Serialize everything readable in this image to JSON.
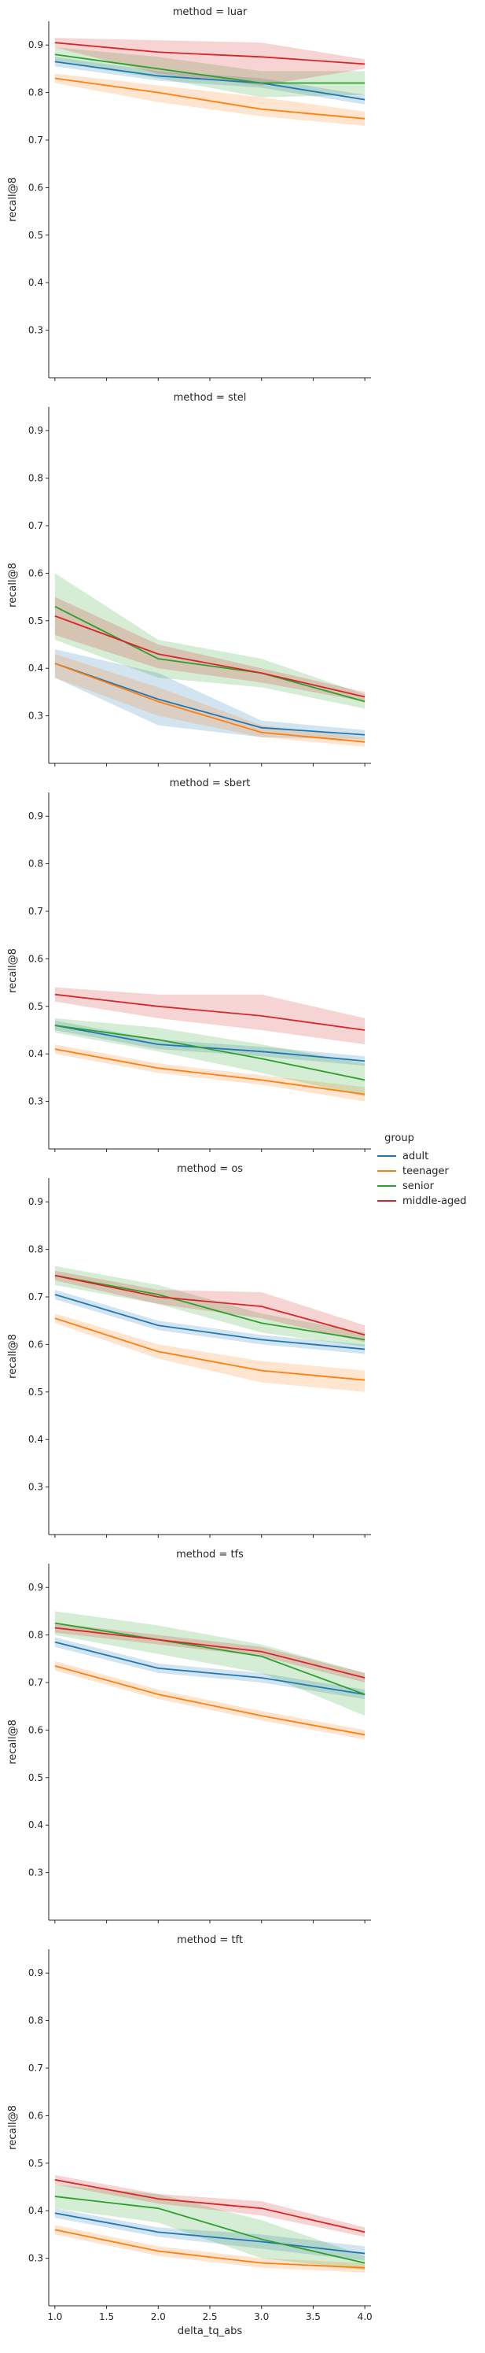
{
  "x_label": "delta_tq_abs",
  "y_label": "recall@8",
  "x_ticks": [
    "1.0",
    "1.5",
    "2.0",
    "2.5",
    "3.0",
    "3.5",
    "4.0"
  ],
  "y_ticks": [
    "0.3",
    "0.4",
    "0.5",
    "0.6",
    "0.7",
    "0.8",
    "0.9"
  ],
  "legend": {
    "title": "group",
    "items": [
      {
        "label": "adult",
        "color": "#1f77b4"
      },
      {
        "label": "teenager",
        "color": "#ff7f0e"
      },
      {
        "label": "senior",
        "color": "#2ca02c"
      },
      {
        "label": "middle-aged",
        "color": "#d62728"
      }
    ]
  },
  "chart_data": [
    {
      "type": "line",
      "title": "method = luar",
      "x": [
        1,
        2,
        3,
        4
      ],
      "xlim": [
        1,
        4
      ],
      "ylim": [
        0.2,
        0.95
      ],
      "xlabel": "",
      "ylabel": "recall@8",
      "series": [
        {
          "name": "adult",
          "color": "#1f77b4",
          "values": [
            0.865,
            0.835,
            0.82,
            0.785
          ],
          "lower": [
            0.855,
            0.825,
            0.81,
            0.775
          ],
          "upper": [
            0.875,
            0.845,
            0.83,
            0.795
          ]
        },
        {
          "name": "teenager",
          "color": "#ff7f0e",
          "values": [
            0.83,
            0.8,
            0.765,
            0.745
          ],
          "lower": [
            0.82,
            0.78,
            0.75,
            0.73
          ],
          "upper": [
            0.84,
            0.815,
            0.79,
            0.76
          ]
        },
        {
          "name": "senior",
          "color": "#2ca02c",
          "values": [
            0.88,
            0.85,
            0.82,
            0.82
          ],
          "lower": [
            0.865,
            0.83,
            0.79,
            0.795
          ],
          "upper": [
            0.895,
            0.875,
            0.845,
            0.845
          ]
        },
        {
          "name": "middle-aged",
          "color": "#d62728",
          "values": [
            0.905,
            0.885,
            0.875,
            0.86
          ],
          "lower": [
            0.895,
            0.84,
            0.815,
            0.85
          ],
          "upper": [
            0.915,
            0.91,
            0.905,
            0.87
          ]
        }
      ]
    },
    {
      "type": "line",
      "title": "method = stel",
      "x": [
        1,
        2,
        3,
        4
      ],
      "xlim": [
        1,
        4
      ],
      "ylim": [
        0.2,
        0.95
      ],
      "xlabel": "",
      "ylabel": "recall@8",
      "series": [
        {
          "name": "adult",
          "color": "#1f77b4",
          "values": [
            0.41,
            0.335,
            0.275,
            0.26
          ],
          "lower": [
            0.38,
            0.28,
            0.255,
            0.25
          ],
          "upper": [
            0.44,
            0.39,
            0.29,
            0.27
          ]
        },
        {
          "name": "teenager",
          "color": "#ff7f0e",
          "values": [
            0.41,
            0.33,
            0.265,
            0.245
          ],
          "lower": [
            0.38,
            0.3,
            0.255,
            0.235
          ],
          "upper": [
            0.43,
            0.36,
            0.28,
            0.255
          ]
        },
        {
          "name": "senior",
          "color": "#2ca02c",
          "values": [
            0.53,
            0.42,
            0.39,
            0.33
          ],
          "lower": [
            0.46,
            0.38,
            0.36,
            0.315
          ],
          "upper": [
            0.6,
            0.46,
            0.42,
            0.345
          ]
        },
        {
          "name": "middle-aged",
          "color": "#d62728",
          "values": [
            0.51,
            0.43,
            0.39,
            0.34
          ],
          "lower": [
            0.47,
            0.4,
            0.37,
            0.33
          ],
          "upper": [
            0.55,
            0.45,
            0.4,
            0.35
          ]
        }
      ]
    },
    {
      "type": "line",
      "title": "method = sbert",
      "x": [
        1,
        2,
        3,
        4
      ],
      "xlim": [
        1,
        4
      ],
      "ylim": [
        0.2,
        0.95
      ],
      "xlabel": "",
      "ylabel": "recall@8",
      "series": [
        {
          "name": "adult",
          "color": "#1f77b4",
          "values": [
            0.46,
            0.42,
            0.405,
            0.385
          ],
          "lower": [
            0.45,
            0.41,
            0.395,
            0.375
          ],
          "upper": [
            0.47,
            0.43,
            0.415,
            0.395
          ]
        },
        {
          "name": "teenager",
          "color": "#ff7f0e",
          "values": [
            0.41,
            0.37,
            0.345,
            0.315
          ],
          "lower": [
            0.4,
            0.36,
            0.335,
            0.3
          ],
          "upper": [
            0.42,
            0.38,
            0.355,
            0.33
          ]
        },
        {
          "name": "senior",
          "color": "#2ca02c",
          "values": [
            0.46,
            0.43,
            0.39,
            0.345
          ],
          "lower": [
            0.445,
            0.405,
            0.36,
            0.31
          ],
          "upper": [
            0.475,
            0.455,
            0.42,
            0.38
          ]
        },
        {
          "name": "middle-aged",
          "color": "#d62728",
          "values": [
            0.525,
            0.5,
            0.48,
            0.45
          ],
          "lower": [
            0.51,
            0.475,
            0.45,
            0.42
          ],
          "upper": [
            0.54,
            0.525,
            0.525,
            0.475
          ]
        }
      ]
    },
    {
      "type": "line",
      "title": "method = os",
      "x": [
        1,
        2,
        3,
        4
      ],
      "xlim": [
        1,
        4
      ],
      "ylim": [
        0.2,
        0.95
      ],
      "xlabel": "",
      "ylabel": "recall@8",
      "series": [
        {
          "name": "adult",
          "color": "#1f77b4",
          "values": [
            0.705,
            0.64,
            0.61,
            0.59
          ],
          "lower": [
            0.695,
            0.63,
            0.6,
            0.58
          ],
          "upper": [
            0.715,
            0.65,
            0.62,
            0.6
          ]
        },
        {
          "name": "teenager",
          "color": "#ff7f0e",
          "values": [
            0.655,
            0.585,
            0.545,
            0.525
          ],
          "lower": [
            0.645,
            0.57,
            0.52,
            0.5
          ],
          "upper": [
            0.665,
            0.6,
            0.565,
            0.545
          ]
        },
        {
          "name": "senior",
          "color": "#2ca02c",
          "values": [
            0.745,
            0.705,
            0.645,
            0.61
          ],
          "lower": [
            0.725,
            0.685,
            0.625,
            0.595
          ],
          "upper": [
            0.765,
            0.725,
            0.665,
            0.625
          ]
        },
        {
          "name": "middle-aged",
          "color": "#d62728",
          "values": [
            0.745,
            0.7,
            0.68,
            0.62
          ],
          "lower": [
            0.735,
            0.685,
            0.655,
            0.605
          ],
          "upper": [
            0.755,
            0.715,
            0.71,
            0.64
          ]
        }
      ]
    },
    {
      "type": "line",
      "title": "method = tfs",
      "x": [
        1,
        2,
        3,
        4
      ],
      "xlim": [
        1,
        4
      ],
      "ylim": [
        0.2,
        0.95
      ],
      "xlabel": "",
      "ylabel": "recall@8",
      "series": [
        {
          "name": "adult",
          "color": "#1f77b4",
          "values": [
            0.785,
            0.73,
            0.71,
            0.675
          ],
          "lower": [
            0.775,
            0.72,
            0.7,
            0.665
          ],
          "upper": [
            0.795,
            0.74,
            0.72,
            0.685
          ]
        },
        {
          "name": "teenager",
          "color": "#ff7f0e",
          "values": [
            0.735,
            0.675,
            0.63,
            0.59
          ],
          "lower": [
            0.725,
            0.665,
            0.62,
            0.58
          ],
          "upper": [
            0.745,
            0.685,
            0.64,
            0.6
          ]
        },
        {
          "name": "senior",
          "color": "#2ca02c",
          "values": [
            0.825,
            0.79,
            0.755,
            0.675
          ],
          "lower": [
            0.8,
            0.76,
            0.72,
            0.63
          ],
          "upper": [
            0.85,
            0.82,
            0.78,
            0.72
          ]
        },
        {
          "name": "middle-aged",
          "color": "#d62728",
          "values": [
            0.815,
            0.79,
            0.765,
            0.71
          ],
          "lower": [
            0.805,
            0.78,
            0.755,
            0.7
          ],
          "upper": [
            0.825,
            0.8,
            0.775,
            0.72
          ]
        }
      ]
    },
    {
      "type": "line",
      "title": "method = tft",
      "x": [
        1,
        2,
        3,
        4
      ],
      "xlim": [
        1,
        4
      ],
      "ylim": [
        0.2,
        0.95
      ],
      "xlabel": "delta_tq_abs",
      "ylabel": "recall@8",
      "series": [
        {
          "name": "adult",
          "color": "#1f77b4",
          "values": [
            0.395,
            0.355,
            0.335,
            0.31
          ],
          "lower": [
            0.385,
            0.345,
            0.32,
            0.295
          ],
          "upper": [
            0.405,
            0.365,
            0.35,
            0.325
          ]
        },
        {
          "name": "teenager",
          "color": "#ff7f0e",
          "values": [
            0.36,
            0.315,
            0.29,
            0.28
          ],
          "lower": [
            0.35,
            0.305,
            0.28,
            0.27
          ],
          "upper": [
            0.37,
            0.325,
            0.3,
            0.29
          ]
        },
        {
          "name": "senior",
          "color": "#2ca02c",
          "values": [
            0.43,
            0.405,
            0.34,
            0.29
          ],
          "lower": [
            0.405,
            0.375,
            0.3,
            0.275
          ],
          "upper": [
            0.455,
            0.435,
            0.38,
            0.305
          ]
        },
        {
          "name": "middle-aged",
          "color": "#d62728",
          "values": [
            0.465,
            0.425,
            0.405,
            0.355
          ],
          "lower": [
            0.455,
            0.415,
            0.39,
            0.345
          ],
          "upper": [
            0.475,
            0.435,
            0.42,
            0.365
          ]
        }
      ]
    }
  ]
}
